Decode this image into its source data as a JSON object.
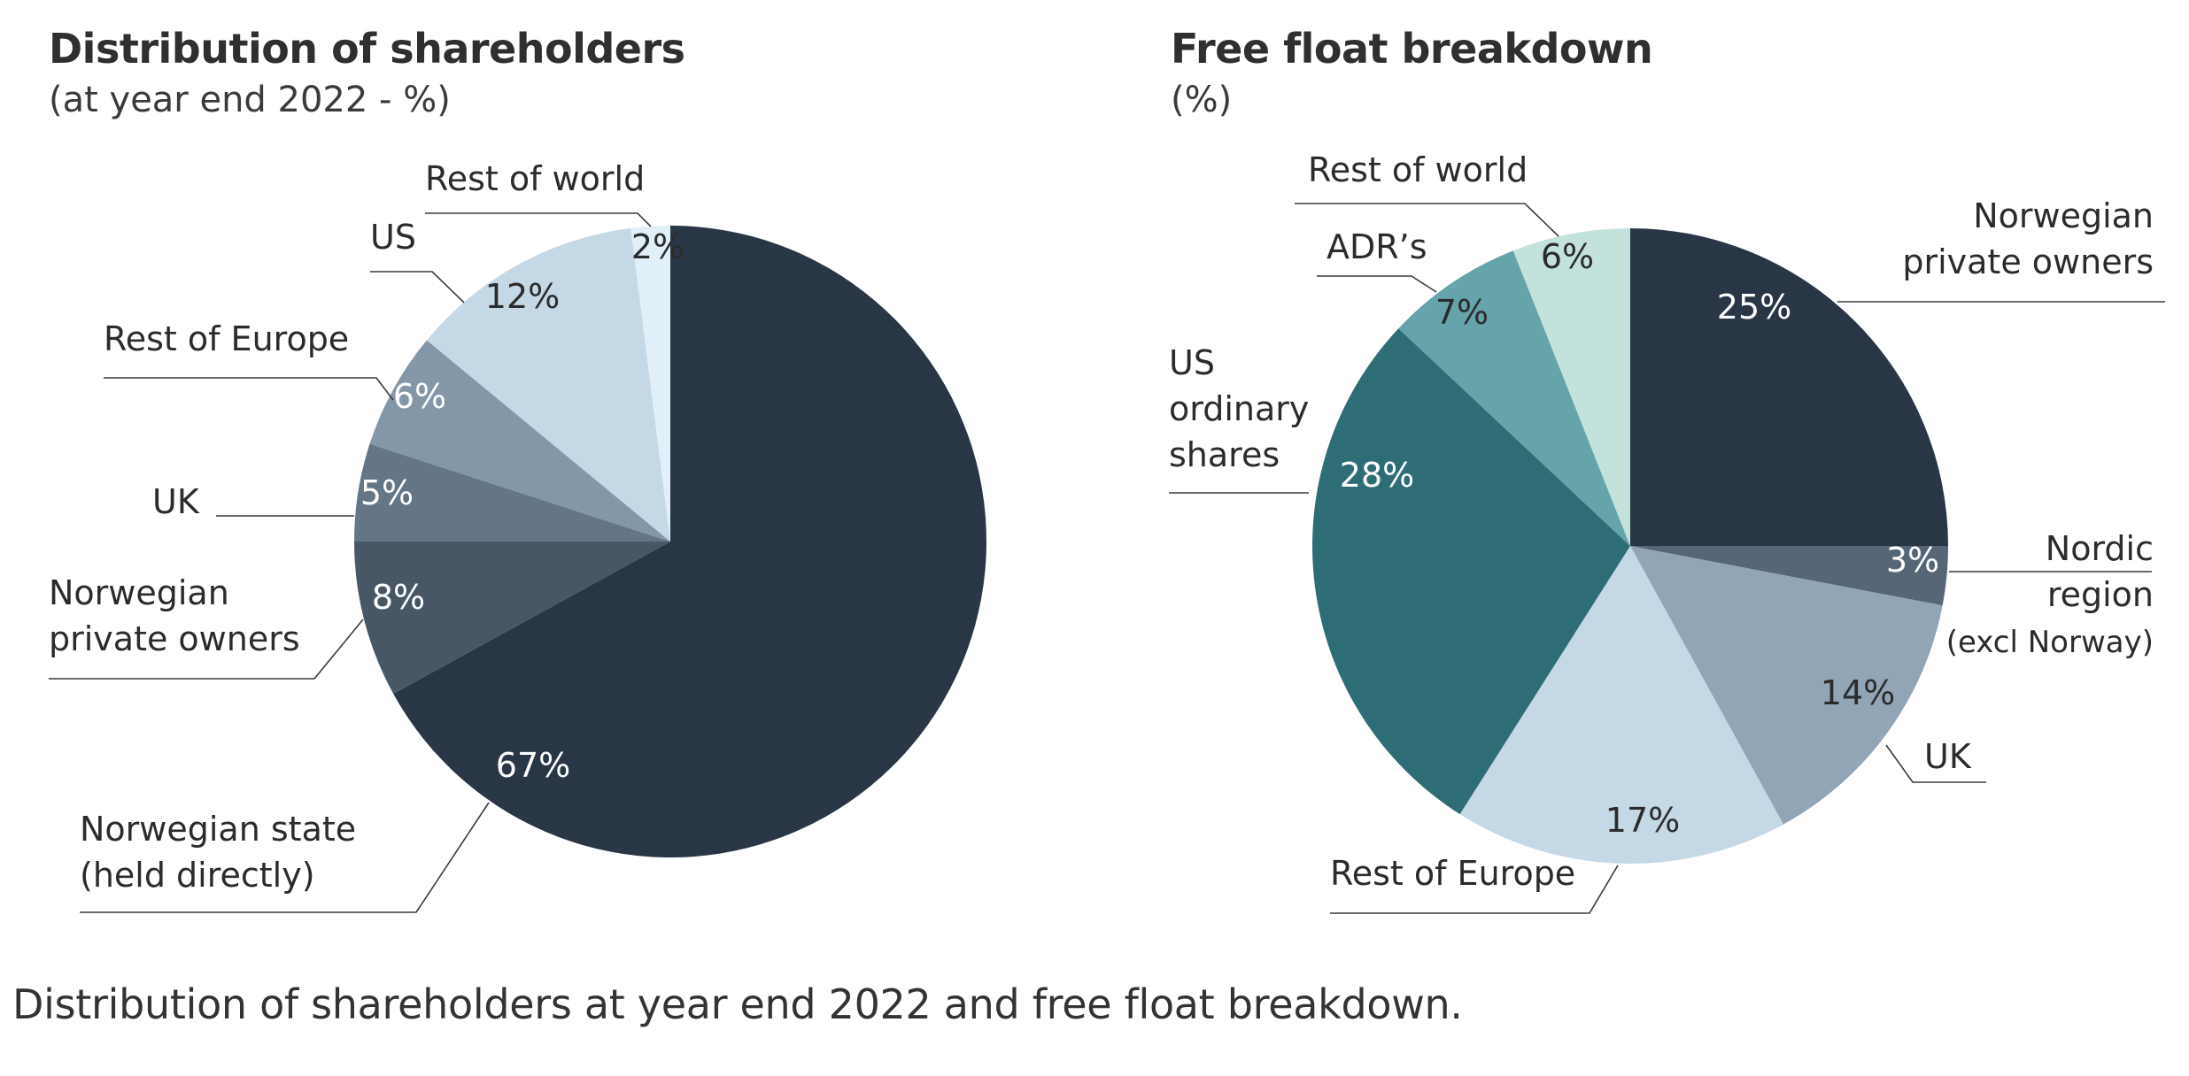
{
  "chart_data": [
    {
      "type": "pie",
      "title": "Distribution of shareholders",
      "subtitle": "(at year end 2022 - %)",
      "unit": "%",
      "slices": [
        {
          "label": [
            "Norwegian state",
            "(held directly)"
          ],
          "value": 67,
          "value_label": "67%",
          "color": "#293646"
        },
        {
          "label": [
            "Norwegian",
            "private owners"
          ],
          "value": 8,
          "value_label": "8%",
          "color": "#475766"
        },
        {
          "label": [
            "UK"
          ],
          "value": 5,
          "value_label": "5%",
          "color": "#647585"
        },
        {
          "label": [
            "Rest of Europe"
          ],
          "value": 6,
          "value_label": "6%",
          "color": "#8497a8"
        },
        {
          "label": [
            "US"
          ],
          "value": 12,
          "value_label": "12%",
          "color": "#c5d8e6"
        },
        {
          "label": [
            "Rest of world"
          ],
          "value": 2,
          "value_label": "2%",
          "color": "#e1f0f8"
        }
      ]
    },
    {
      "type": "pie",
      "title": "Free float breakdown",
      "subtitle": "(%)",
      "unit": "%",
      "slices": [
        {
          "label": [
            "Norwegian",
            "private owners"
          ],
          "value": 25,
          "value_label": "25%",
          "color": "#293646"
        },
        {
          "label": [
            "Nordic",
            "region",
            "(excl Norway)"
          ],
          "value": 3,
          "value_label": "3%",
          "color": "#566676"
        },
        {
          "label": [
            "UK"
          ],
          "value": 14,
          "value_label": "14%",
          "color": "#91a5b7"
        },
        {
          "label": [
            "Rest of Europe"
          ],
          "value": 17,
          "value_label": "17%",
          "color": "#c5d8e6"
        },
        {
          "label": [
            "US",
            "ordinary",
            "shares"
          ],
          "value": 28,
          "value_label": "28%",
          "color": "#2e6d76"
        },
        {
          "label": [
            "ADR’s"
          ],
          "value": 7,
          "value_label": "7%",
          "color": "#65a4aa"
        },
        {
          "label": [
            "Rest of world"
          ],
          "value": 6,
          "value_label": "6%",
          "color": "#c4e2dc"
        }
      ]
    }
  ],
  "caption": "Distribution of shareholders at year end 2022 and free float breakdown."
}
